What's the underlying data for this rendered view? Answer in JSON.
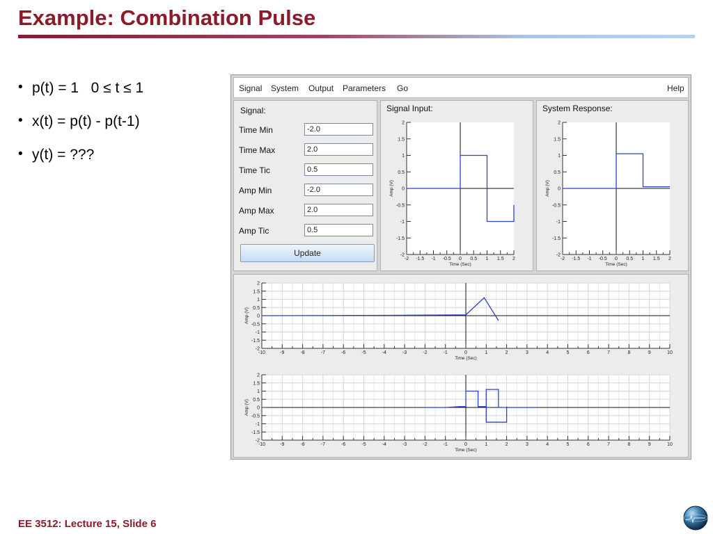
{
  "slide": {
    "title": "Example: Combination Pulse",
    "footer": "EE 3512: Lecture 15, Slide 6",
    "bullets": [
      {
        "math": "p(t) = 1   0 ≤ t ≤ 1"
      },
      {
        "math": "x(t) = p(t) - p(t-1)"
      },
      {
        "math": "y(t) = ???"
      }
    ]
  },
  "menubar": {
    "items": [
      "Signal",
      "System",
      "Output",
      "Parameters",
      "Go"
    ],
    "help": "Help"
  },
  "signal_panel": {
    "title": "Signal:",
    "fields": [
      {
        "label": "Time Min",
        "value": "-2.0"
      },
      {
        "label": "Time Max",
        "value": "2.0"
      },
      {
        "label": "Time Tic",
        "value": "0.5"
      },
      {
        "label": "Amp Min",
        "value": "-2.0"
      },
      {
        "label": "Amp Max",
        "value": "2.0"
      },
      {
        "label": "Amp Tic",
        "value": "0.5"
      }
    ],
    "update_button": "Update"
  },
  "plot_panels": {
    "signal_input_title": "Signal Input:",
    "system_response_title": "System Response:"
  },
  "colors": {
    "title": "#8b1a2b",
    "trace": "#2a3fd6",
    "trace_dark": "#0d1a8c"
  },
  "chart_data": [
    {
      "type": "line",
      "title": "Signal Input:",
      "xlabel": "Time (Sec)",
      "ylabel": "Amp (V)",
      "xlim": [
        -2,
        2
      ],
      "ylim": [
        -2,
        2
      ],
      "xticks": [
        "-2",
        "-1.5",
        "-1",
        "-0.5",
        "0",
        "0.5",
        "1",
        "1.5",
        "2"
      ],
      "yticks": [
        "2",
        "1.5",
        "1",
        "0.5",
        "0",
        "-0.5",
        "-1",
        "-1.5",
        "-2"
      ],
      "grid": false,
      "series": [
        {
          "x": [
            -2,
            -0.2,
            0,
            0,
            1,
            1,
            2,
            2
          ],
          "y": [
            0,
            0,
            0,
            1,
            1,
            -1,
            -1,
            -0.5
          ]
        }
      ]
    },
    {
      "type": "line",
      "title": "System Response:",
      "xlabel": "Time (Sec)",
      "ylabel": "Amp (V)",
      "xlim": [
        -2,
        2
      ],
      "ylim": [
        -2,
        2
      ],
      "xticks": [
        "-2",
        "-1.5",
        "-1",
        "-0.5",
        "0",
        "0.5",
        "1",
        "1.5",
        "2"
      ],
      "yticks": [
        "2",
        "1.5",
        "1",
        "0.5",
        "0",
        "-0.5",
        "-1",
        "-1.5",
        "-2"
      ],
      "grid": false,
      "series": [
        {
          "x": [
            -2,
            -0.05,
            0,
            0,
            1,
            1,
            2
          ],
          "y": [
            0,
            0,
            0,
            1.05,
            1.05,
            0.05,
            0.05
          ]
        }
      ]
    },
    {
      "type": "line",
      "xlabel": "Time (Sec)",
      "ylabel": "Amp (V)",
      "xlim": [
        -10,
        10
      ],
      "ylim": [
        -2,
        2
      ],
      "xticks": [
        "-10",
        "-9",
        "-8",
        "-7",
        "-6",
        "-5",
        "-4",
        "-3",
        "-2",
        "-1",
        "0",
        "1",
        "2",
        "3",
        "4",
        "5",
        "6",
        "7",
        "8",
        "9",
        "10"
      ],
      "yticks": [
        "2",
        "1.5",
        "1",
        "0.5",
        "0",
        "-0.5",
        "-1",
        "-1.5",
        "-2"
      ],
      "grid": true,
      "series": [
        {
          "x": [
            -10,
            -4,
            0,
            0.9,
            1.6
          ],
          "y": [
            0,
            0.02,
            0.05,
            1.1,
            -0.3
          ]
        }
      ]
    },
    {
      "type": "line",
      "xlabel": "Time (Sec)",
      "ylabel": "Amp (V)",
      "xlim": [
        -10,
        10
      ],
      "ylim": [
        -2,
        2
      ],
      "xticks": [
        "-10",
        "-9",
        "-8",
        "-7",
        "-6",
        "-5",
        "-4",
        "-3",
        "-2",
        "-1",
        "0",
        "1",
        "2",
        "3",
        "4",
        "5",
        "6",
        "7",
        "8",
        "9",
        "10"
      ],
      "yticks": [
        "2",
        "1.5",
        "1",
        "0.5",
        "0",
        "-0.5",
        "-1",
        "-1.5",
        "-2"
      ],
      "grid": true,
      "series": [
        {
          "x": [
            -2,
            -1,
            -0.3,
            0,
            0,
            0.6,
            0.6,
            1,
            1,
            1.6,
            1.6,
            3.5
          ],
          "y": [
            0,
            0,
            0.05,
            0.05,
            1.0,
            1.0,
            0.05,
            0.05,
            1.1,
            1.1,
            0,
            0
          ]
        },
        {
          "x": [
            1,
            1,
            2,
            2
          ],
          "y": [
            0.05,
            -0.9,
            -0.9,
            0.05
          ]
        }
      ]
    }
  ]
}
